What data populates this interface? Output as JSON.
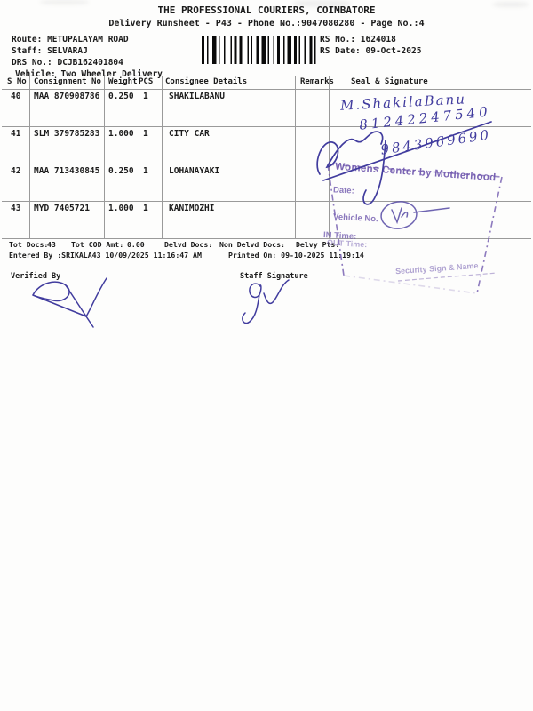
{
  "page": {
    "title": "THE PROFESSIONAL COURIERS, COIMBATORE",
    "subtitle": "Delivery Runsheet - P43 - Phone No.:9047080280 - Page No.:4"
  },
  "info": {
    "route_label": "Route:",
    "route": "METUPALAYAM ROAD",
    "staff_label": "Staff:",
    "staff": "SELVARAJ",
    "drs_label": "DRS No.:",
    "drs": "DCJB162401804",
    "vehicle_label": "Vehicle:",
    "vehicle": "Two Wheeler Delivery",
    "rs_no_label": "RS No.:",
    "rs_no": "1624018",
    "rs_date_label": "RS Date:",
    "rs_date": "09-Oct-2025"
  },
  "table": {
    "columns": [
      "S No",
      "Consignment No",
      "Weight",
      "PCS",
      "Consignee Details",
      "Remarks",
      "Seal & Signature"
    ],
    "rows": [
      {
        "s_no": "40",
        "consignment_no": "MAA 870908786",
        "weight": "0.250",
        "pcs": "1",
        "consignee": "SHAKILABANU",
        "remarks": ""
      },
      {
        "s_no": "41",
        "consignment_no": "SLM 379785283",
        "weight": "1.000",
        "pcs": "1",
        "consignee": "CITY CAR",
        "remarks": ""
      },
      {
        "s_no": "42",
        "consignment_no": "MAA 713430845",
        "weight": "0.250",
        "pcs": "1",
        "consignee": "LOHANAYAKI",
        "remarks": ""
      },
      {
        "s_no": "43",
        "consignment_no": "MYD 7405721",
        "weight": "1.000",
        "pcs": "1",
        "consignee": "KANIMOZHI",
        "remarks": ""
      }
    ]
  },
  "summary": {
    "tot_docs_label": "Tot Docs:",
    "tot_docs": "43",
    "cod_label": "Tot COD Amt:",
    "cod": "0.00",
    "delvd_label": "Delvd Docs:",
    "non_delvd_label": "Non Delvd Docs:",
    "delvy_pts_label": "Delvy Pts:",
    "entered_by": "Entered By :SRIKALA43 10/09/2025 11:16:47 AM",
    "printed_on": "Printed On: 09-10-2025 11:19:14",
    "verified_by_label": "Verified By",
    "staff_signature_label": "Staff Signature"
  },
  "handwriting": {
    "name": "M.ShakilaBanu",
    "phone1": "81242247540",
    "phone2": "9843969690"
  },
  "stamp": {
    "title": "Womens Center by Motherhood",
    "date_label": "Date:",
    "vehicle_label": "Vehicle No.",
    "in_time_label": "IN Time:",
    "out_time_label": "OUT Time:",
    "sign_label": "Security Sign & Name"
  },
  "colors": {
    "text": "#1b1b1b",
    "ink": "#413c9e",
    "stamp": "#7059ae",
    "line": "#9a9a9a"
  }
}
